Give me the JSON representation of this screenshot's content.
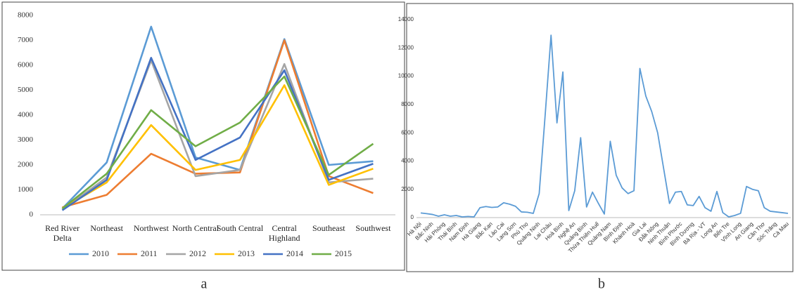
{
  "chart_data": [
    {
      "type": "line",
      "caption": "a",
      "categories": [
        "Red River Delta",
        "Northeast",
        "Northwest",
        "North Central",
        "South Central",
        "Central Highland",
        "Southeast",
        "Southwest"
      ],
      "series": [
        {
          "name": "2010",
          "color": "#5b9bd5",
          "values": [
            250,
            2100,
            7550,
            2300,
            1800,
            7050,
            2000,
            2150
          ]
        },
        {
          "name": "2011",
          "color": "#ed7d31",
          "values": [
            300,
            800,
            2450,
            1650,
            1700,
            7000,
            1550,
            870
          ]
        },
        {
          "name": "2012",
          "color": "#a5a5a5",
          "values": [
            200,
            1500,
            6200,
            1550,
            1800,
            6050,
            1300,
            1450
          ]
        },
        {
          "name": "2013",
          "color": "#ffc000",
          "values": [
            250,
            1300,
            3600,
            1800,
            2200,
            5200,
            1200,
            1850
          ]
        },
        {
          "name": "2014",
          "color": "#4472c4",
          "values": [
            180,
            1400,
            6300,
            2200,
            3100,
            5800,
            1400,
            2050
          ]
        },
        {
          "name": "2015",
          "color": "#70ad47",
          "values": [
            250,
            1650,
            4200,
            2750,
            3700,
            5550,
            1600,
            2850
          ]
        }
      ],
      "ylim": [
        0,
        8000
      ],
      "yticks": [
        0,
        1000,
        2000,
        3000,
        4000,
        5000,
        6000,
        7000,
        8000
      ],
      "grid": false,
      "legend": "bottom"
    },
    {
      "type": "line",
      "caption": "b",
      "categories": [
        "Hà Nội",
        null,
        "Bắc Ninh",
        null,
        "Hải Phòng",
        null,
        "Thái Bình",
        null,
        "Nam Định",
        null,
        "Hà Giang",
        null,
        "Bắc Kạn",
        null,
        "Lào Cai",
        null,
        "Lạng Sơn",
        null,
        "Phú Thọ",
        null,
        "Quảng Ninh",
        null,
        "Lai Châu",
        null,
        "Hoà Bình",
        null,
        "Nghệ An",
        null,
        "Quảng Bình",
        null,
        "Thừa Thiên Huế",
        null,
        "Quảng Nam",
        null,
        "Bình Định",
        null,
        "Khánh Hoà",
        null,
        "Gia Lai",
        null,
        "Đắk Nông",
        null,
        "Ninh Thuận",
        null,
        "Bình Phước",
        null,
        "Bình Dương",
        null,
        "Bà Rịa - VT",
        null,
        "Long An",
        null,
        "Bến Tre",
        null,
        "Vĩnh Long",
        null,
        "An Giang",
        null,
        "Cần Thơ",
        null,
        "Sóc Trăng",
        null,
        "Cà Mau"
      ],
      "series": [
        {
          "color": "#5b9bd5",
          "values": [
            330,
            280,
            220,
            100,
            200,
            100,
            150,
            50,
            80,
            50,
            700,
            780,
            720,
            750,
            1050,
            950,
            800,
            400,
            380,
            300,
            1700,
            7200,
            12900,
            6700,
            10300,
            500,
            1900,
            5650,
            750,
            1800,
            1000,
            250,
            5400,
            3000,
            2100,
            1700,
            1900,
            10550,
            8600,
            7500,
            6000,
            3500,
            1000,
            1800,
            1850,
            900,
            850,
            1500,
            700,
            450,
            1850,
            350,
            50,
            150,
            300,
            2200,
            2000,
            1900,
            700,
            450,
            400,
            350,
            300
          ]
        }
      ],
      "ylim": [
        0,
        14000
      ],
      "yticks": [
        0,
        2000,
        4000,
        6000,
        8000,
        10000,
        12000,
        14000
      ],
      "grid": false
    }
  ]
}
